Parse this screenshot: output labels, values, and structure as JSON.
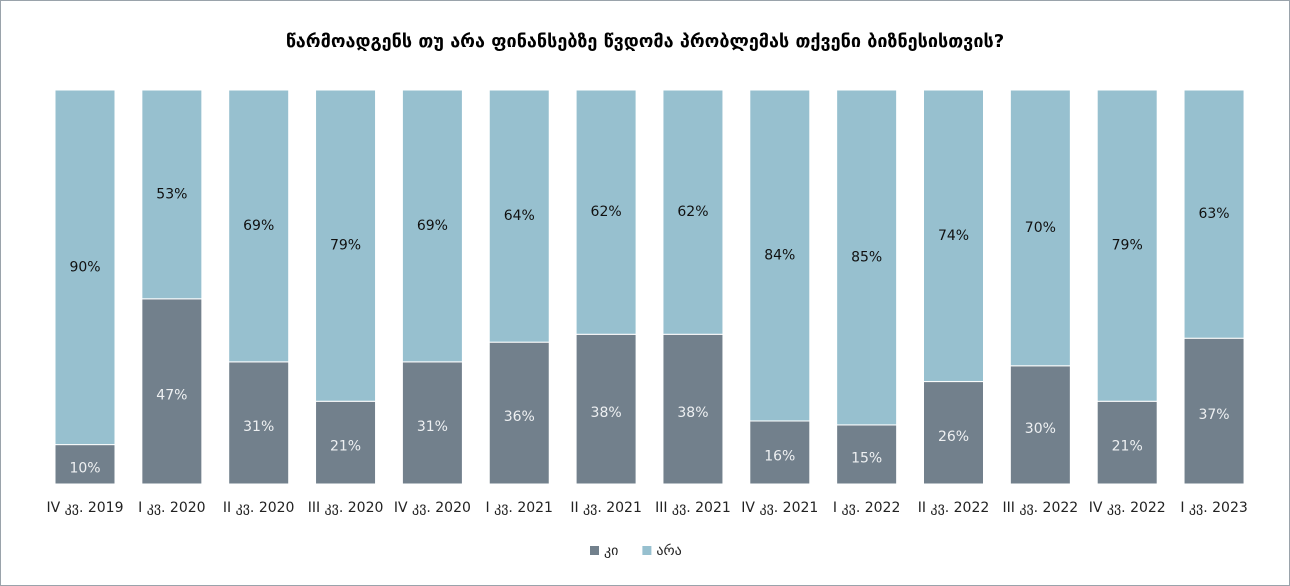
{
  "chart_data": {
    "type": "stacked_bar",
    "title": "წარმოადგენს თუ არა ფინანსებზე წვდომა პრობლემას თქვენი ბიზნესისთვის?",
    "categories": [
      "IV კვ. 2019",
      "I კვ. 2020",
      "II კვ. 2020",
      "III კვ. 2020",
      "IV კვ. 2020",
      "I კვ. 2021",
      "II კვ. 2021",
      "III კვ. 2021",
      "IV კვ. 2021",
      "I კვ. 2022",
      "II კვ. 2022",
      "III კვ. 2022",
      "IV კვ. 2022",
      "I კვ. 2023"
    ],
    "series": [
      {
        "name": "კი",
        "color": "#72808c",
        "values": [
          10,
          47,
          31,
          21,
          31,
          36,
          38,
          38,
          16,
          15,
          26,
          30,
          21,
          37
        ],
        "value_labels": [
          "10%",
          "47%",
          "31%",
          "21%",
          "31%",
          "36%",
          "38%",
          "38%",
          "16%",
          "15%",
          "26%",
          "30%",
          "21%",
          "37%"
        ]
      },
      {
        "name": "არა",
        "color": "#97c0cf",
        "values": [
          90,
          53,
          69,
          79,
          69,
          64,
          62,
          62,
          84,
          85,
          74,
          70,
          79,
          63
        ],
        "value_labels": [
          "90%",
          "53%",
          "69%",
          "79%",
          "69%",
          "64%",
          "62%",
          "62%",
          "84%",
          "85%",
          "74%",
          "70%",
          "79%",
          "63%"
        ]
      }
    ],
    "ylim": [
      0,
      100
    ]
  }
}
